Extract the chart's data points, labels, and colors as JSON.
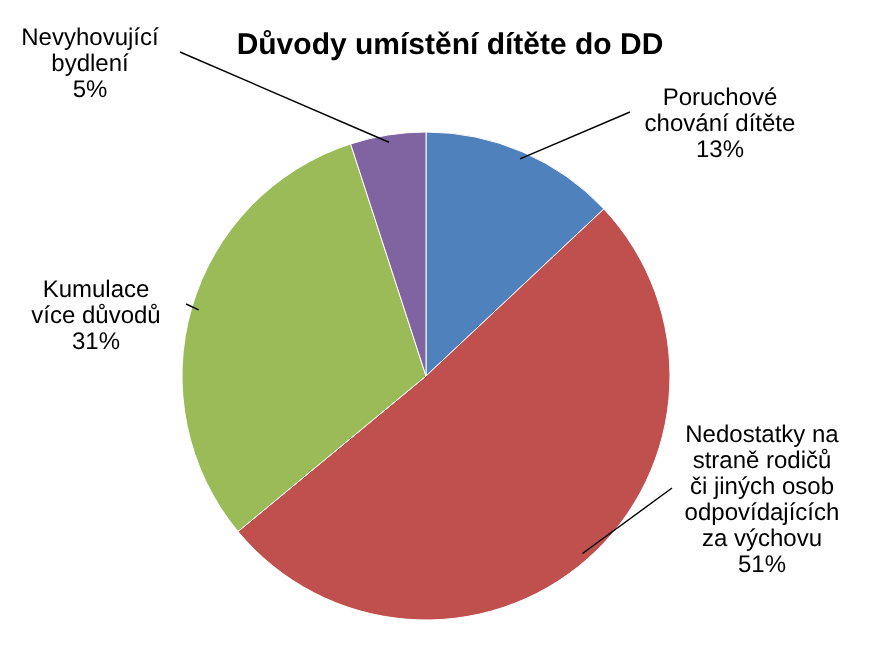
{
  "chart_data": {
    "type": "pie",
    "title": "Důvody umístění dítěte do DD",
    "categories": [
      "Poruchové\nchování dítěte",
      "Nedostatky na\nstraně rodičů\nči jiných osob\nodpovídajících\nza výchovu",
      "Kumulace\nvíce důvodů",
      "Nevyhovující\nbydlení"
    ],
    "values": [
      13,
      51,
      31,
      5
    ],
    "colors": [
      "#4f81bd",
      "#c0504d",
      "#9bbb59",
      "#8064a2"
    ],
    "value_labels": [
      "13%",
      "51%",
      "31%",
      "5%"
    ]
  }
}
